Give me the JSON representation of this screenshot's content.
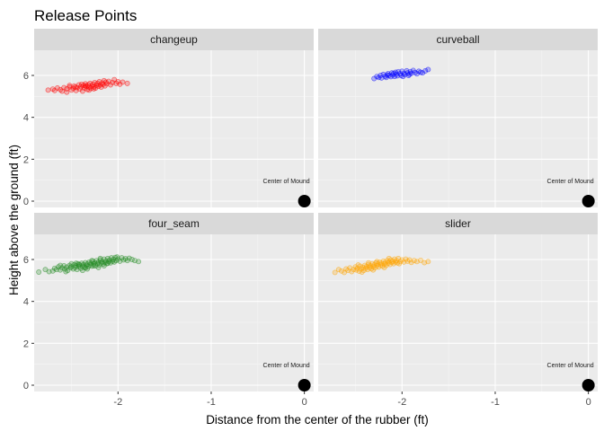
{
  "chart_data": {
    "type": "scatter",
    "title": "Release Points",
    "xlabel": "Distance from the center of the rubber (ft)",
    "ylabel": "Height above the ground (ft)",
    "xlim": [
      -2.9,
      0.1
    ],
    "ylim": [
      -0.3,
      7.2
    ],
    "x_ticks": [
      -2,
      -1,
      0
    ],
    "y_ticks": [
      0,
      2,
      4,
      6
    ],
    "grid": true,
    "annotation": {
      "text": "Center of Mound",
      "x": 0,
      "y": 0
    },
    "facets": [
      {
        "name": "changeup",
        "color": "#ff0000",
        "points": [
          [
            -2.75,
            5.3
          ],
          [
            -2.7,
            5.35
          ],
          [
            -2.68,
            5.28
          ],
          [
            -2.65,
            5.4
          ],
          [
            -2.62,
            5.32
          ],
          [
            -2.6,
            5.25
          ],
          [
            -2.58,
            5.42
          ],
          [
            -2.55,
            5.36
          ],
          [
            -2.55,
            5.2
          ],
          [
            -2.52,
            5.45
          ],
          [
            -2.5,
            5.3
          ],
          [
            -2.48,
            5.38
          ],
          [
            -2.47,
            5.5
          ],
          [
            -2.45,
            5.28
          ],
          [
            -2.44,
            5.42
          ],
          [
            -2.42,
            5.55
          ],
          [
            -2.41,
            5.35
          ],
          [
            -2.4,
            5.46
          ],
          [
            -2.38,
            5.25
          ],
          [
            -2.37,
            5.52
          ],
          [
            -2.36,
            5.4
          ],
          [
            -2.35,
            5.6
          ],
          [
            -2.34,
            5.48
          ],
          [
            -2.33,
            5.33
          ],
          [
            -2.32,
            5.55
          ],
          [
            -2.31,
            5.44
          ],
          [
            -2.3,
            5.62
          ],
          [
            -2.29,
            5.38
          ],
          [
            -2.28,
            5.5
          ],
          [
            -2.27,
            5.58
          ],
          [
            -2.26,
            5.45
          ],
          [
            -2.25,
            5.66
          ],
          [
            -2.24,
            5.4
          ],
          [
            -2.23,
            5.54
          ],
          [
            -2.22,
            5.62
          ],
          [
            -2.21,
            5.48
          ],
          [
            -2.2,
            5.7
          ],
          [
            -2.19,
            5.55
          ],
          [
            -2.18,
            5.44
          ],
          [
            -2.17,
            5.64
          ],
          [
            -2.16,
            5.58
          ],
          [
            -2.15,
            5.75
          ],
          [
            -2.14,
            5.5
          ],
          [
            -2.13,
            5.68
          ],
          [
            -2.12,
            5.6
          ],
          [
            -2.1,
            5.72
          ],
          [
            -2.08,
            5.55
          ],
          [
            -2.06,
            5.66
          ],
          [
            -2.04,
            5.8
          ],
          [
            -2.02,
            5.62
          ],
          [
            -2.0,
            5.7
          ],
          [
            -1.98,
            5.58
          ],
          [
            -1.95,
            5.68
          ],
          [
            -1.9,
            5.62
          ],
          [
            -2.39,
            5.58
          ],
          [
            -2.46,
            5.44
          ],
          [
            -2.31,
            5.3
          ],
          [
            -2.26,
            5.36
          ],
          [
            -2.52,
            5.52
          ],
          [
            -2.35,
            5.5
          ]
        ]
      },
      {
        "name": "curveball",
        "color": "#0000ff",
        "points": [
          [
            -2.3,
            5.85
          ],
          [
            -2.27,
            5.95
          ],
          [
            -2.25,
            5.9
          ],
          [
            -2.23,
            6.0
          ],
          [
            -2.22,
            5.88
          ],
          [
            -2.2,
            6.05
          ],
          [
            -2.18,
            5.96
          ],
          [
            -2.17,
            5.9
          ],
          [
            -2.15,
            6.08
          ],
          [
            -2.14,
            6.0
          ],
          [
            -2.12,
            5.94
          ],
          [
            -2.11,
            6.12
          ],
          [
            -2.1,
            6.02
          ],
          [
            -2.08,
            5.95
          ],
          [
            -2.07,
            6.15
          ],
          [
            -2.06,
            6.06
          ],
          [
            -2.05,
            5.98
          ],
          [
            -2.04,
            6.18
          ],
          [
            -2.02,
            6.08
          ],
          [
            -2.01,
            6.0
          ],
          [
            -2.0,
            6.2
          ],
          [
            -1.98,
            6.1
          ],
          [
            -1.97,
            6.04
          ],
          [
            -1.95,
            6.22
          ],
          [
            -1.94,
            6.12
          ],
          [
            -1.92,
            6.05
          ],
          [
            -1.91,
            6.18
          ],
          [
            -1.9,
            6.1
          ],
          [
            -1.88,
            6.24
          ],
          [
            -1.86,
            6.14
          ],
          [
            -1.84,
            6.08
          ],
          [
            -1.82,
            6.2
          ],
          [
            -1.8,
            6.15
          ],
          [
            -1.78,
            6.12
          ],
          [
            -1.75,
            6.22
          ],
          [
            -1.72,
            6.28
          ],
          [
            -2.09,
            6.1
          ],
          [
            -2.16,
            6.02
          ],
          [
            -1.99,
            5.95
          ],
          [
            -1.93,
            6.0
          ]
        ]
      },
      {
        "name": "four_seam",
        "color": "#228b22",
        "points": [
          [
            -2.7,
            5.45
          ],
          [
            -2.68,
            5.58
          ],
          [
            -2.66,
            5.52
          ],
          [
            -2.64,
            5.65
          ],
          [
            -2.62,
            5.5
          ],
          [
            -2.6,
            5.6
          ],
          [
            -2.58,
            5.7
          ],
          [
            -2.57,
            5.55
          ],
          [
            -2.55,
            5.64
          ],
          [
            -2.54,
            5.48
          ],
          [
            -2.52,
            5.72
          ],
          [
            -2.51,
            5.6
          ],
          [
            -2.5,
            5.66
          ],
          [
            -2.48,
            5.55
          ],
          [
            -2.47,
            5.75
          ],
          [
            -2.46,
            5.62
          ],
          [
            -2.45,
            5.7
          ],
          [
            -2.44,
            5.52
          ],
          [
            -2.43,
            5.8
          ],
          [
            -2.42,
            5.66
          ],
          [
            -2.41,
            5.74
          ],
          [
            -2.4,
            5.58
          ],
          [
            -2.39,
            5.82
          ],
          [
            -2.38,
            5.68
          ],
          [
            -2.37,
            5.76
          ],
          [
            -2.36,
            5.62
          ],
          [
            -2.35,
            5.85
          ],
          [
            -2.34,
            5.72
          ],
          [
            -2.33,
            5.78
          ],
          [
            -2.32,
            5.65
          ],
          [
            -2.31,
            5.88
          ],
          [
            -2.3,
            5.74
          ],
          [
            -2.29,
            5.82
          ],
          [
            -2.28,
            5.68
          ],
          [
            -2.27,
            5.92
          ],
          [
            -2.26,
            5.78
          ],
          [
            -2.25,
            5.85
          ],
          [
            -2.24,
            5.7
          ],
          [
            -2.23,
            5.95
          ],
          [
            -2.22,
            5.8
          ],
          [
            -2.21,
            5.88
          ],
          [
            -2.2,
            5.74
          ],
          [
            -2.19,
            5.98
          ],
          [
            -2.18,
            5.84
          ],
          [
            -2.17,
            5.9
          ],
          [
            -2.16,
            5.78
          ],
          [
            -2.15,
            6.02
          ],
          [
            -2.14,
            5.86
          ],
          [
            -2.13,
            5.94
          ],
          [
            -2.12,
            5.8
          ],
          [
            -2.11,
            6.05
          ],
          [
            -2.1,
            5.9
          ],
          [
            -2.09,
            5.98
          ],
          [
            -2.08,
            5.84
          ],
          [
            -2.07,
            6.08
          ],
          [
            -2.06,
            5.92
          ],
          [
            -2.05,
            6.0
          ],
          [
            -2.04,
            5.88
          ],
          [
            -2.03,
            6.1
          ],
          [
            -2.02,
            5.95
          ],
          [
            -2.0,
            6.02
          ],
          [
            -1.98,
            5.92
          ],
          [
            -1.96,
            6.08
          ],
          [
            -1.94,
            5.98
          ],
          [
            -1.92,
            6.04
          ],
          [
            -1.9,
            5.95
          ],
          [
            -1.88,
            6.06
          ],
          [
            -1.85,
            6.0
          ],
          [
            -1.82,
            5.95
          ],
          [
            -1.78,
            5.9
          ],
          [
            -2.85,
            5.4
          ],
          [
            -2.78,
            5.52
          ],
          [
            -2.74,
            5.42
          ],
          [
            -2.33,
            5.55
          ],
          [
            -2.21,
            5.62
          ],
          [
            -2.45,
            5.82
          ],
          [
            -2.28,
            5.95
          ],
          [
            -2.15,
            5.7
          ],
          [
            -2.38,
            5.48
          ],
          [
            -2.5,
            5.8
          ],
          [
            -2.56,
            5.42
          ],
          [
            -2.62,
            5.72
          ],
          [
            -2.19,
            6.05
          ],
          [
            -2.11,
            5.82
          ],
          [
            -2.01,
            6.12
          ],
          [
            -2.35,
            5.6
          ],
          [
            -2.26,
            5.7
          ],
          [
            -2.42,
            5.76
          ]
        ]
      },
      {
        "name": "slider",
        "color": "#ffa500",
        "points": [
          [
            -2.65,
            5.45
          ],
          [
            -2.62,
            5.38
          ],
          [
            -2.6,
            5.55
          ],
          [
            -2.58,
            5.48
          ],
          [
            -2.56,
            5.6
          ],
          [
            -2.54,
            5.42
          ],
          [
            -2.52,
            5.52
          ],
          [
            -2.5,
            5.65
          ],
          [
            -2.49,
            5.5
          ],
          [
            -2.48,
            5.58
          ],
          [
            -2.46,
            5.44
          ],
          [
            -2.45,
            5.68
          ],
          [
            -2.44,
            5.55
          ],
          [
            -2.42,
            5.62
          ],
          [
            -2.41,
            5.48
          ],
          [
            -2.4,
            5.72
          ],
          [
            -2.39,
            5.58
          ],
          [
            -2.38,
            5.66
          ],
          [
            -2.37,
            5.52
          ],
          [
            -2.36,
            5.76
          ],
          [
            -2.35,
            5.62
          ],
          [
            -2.34,
            5.7
          ],
          [
            -2.33,
            5.56
          ],
          [
            -2.32,
            5.8
          ],
          [
            -2.31,
            5.66
          ],
          [
            -2.3,
            5.74
          ],
          [
            -2.29,
            5.6
          ],
          [
            -2.28,
            5.84
          ],
          [
            -2.27,
            5.7
          ],
          [
            -2.26,
            5.78
          ],
          [
            -2.25,
            5.64
          ],
          [
            -2.24,
            5.88
          ],
          [
            -2.23,
            5.74
          ],
          [
            -2.22,
            5.82
          ],
          [
            -2.21,
            5.68
          ],
          [
            -2.2,
            5.92
          ],
          [
            -2.19,
            5.78
          ],
          [
            -2.18,
            5.86
          ],
          [
            -2.17,
            5.72
          ],
          [
            -2.16,
            5.95
          ],
          [
            -2.15,
            5.82
          ],
          [
            -2.14,
            5.9
          ],
          [
            -2.13,
            5.76
          ],
          [
            -2.12,
            5.98
          ],
          [
            -2.11,
            5.86
          ],
          [
            -2.1,
            5.92
          ],
          [
            -2.09,
            5.8
          ],
          [
            -2.08,
            6.02
          ],
          [
            -2.07,
            5.88
          ],
          [
            -2.06,
            5.95
          ],
          [
            -2.05,
            5.84
          ],
          [
            -2.04,
            6.05
          ],
          [
            -2.02,
            5.9
          ],
          [
            -2.0,
            5.98
          ],
          [
            -1.98,
            5.88
          ],
          [
            -1.96,
            6.02
          ],
          [
            -1.94,
            5.92
          ],
          [
            -1.92,
            5.98
          ],
          [
            -1.9,
            5.86
          ],
          [
            -1.87,
            5.95
          ],
          [
            -1.84,
            5.9
          ],
          [
            -1.8,
            5.96
          ],
          [
            -1.76,
            5.85
          ],
          [
            -1.72,
            5.9
          ],
          [
            -2.72,
            5.38
          ],
          [
            -2.68,
            5.52
          ],
          [
            -2.43,
            5.4
          ],
          [
            -2.31,
            5.5
          ],
          [
            -2.19,
            5.62
          ],
          [
            -2.27,
            5.9
          ],
          [
            -2.36,
            5.84
          ],
          [
            -2.14,
            6.05
          ],
          [
            -2.47,
            5.74
          ],
          [
            -2.03,
            5.8
          ]
        ]
      }
    ]
  }
}
